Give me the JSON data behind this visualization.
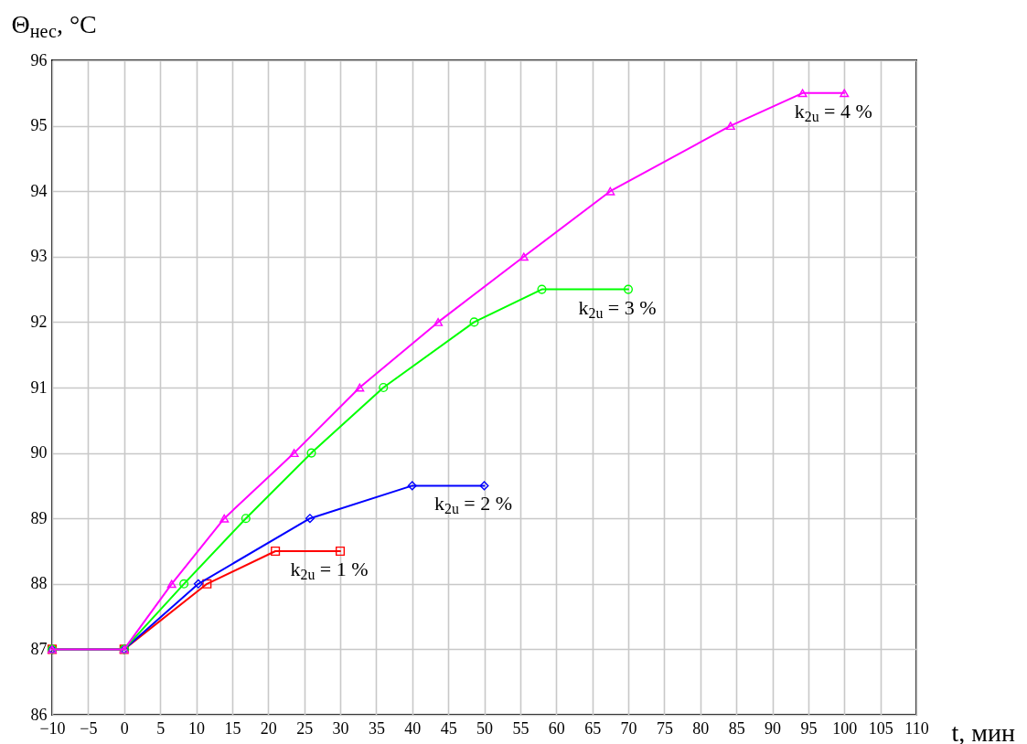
{
  "chart_data": {
    "type": "line",
    "xlabel": "t, мин",
    "ylabel": "Θ$_{нес}$, °C",
    "xlim": [
      -10,
      110
    ],
    "xticks": [
      -10,
      -5,
      0,
      5,
      10,
      15,
      20,
      25,
      30,
      35,
      40,
      45,
      50,
      55,
      60,
      65,
      70,
      75,
      80,
      85,
      90,
      95,
      100,
      105,
      110
    ],
    "ylim": [
      86,
      96
    ],
    "yticks": [
      86,
      87,
      88,
      89,
      90,
      91,
      92,
      93,
      94,
      95,
      96
    ],
    "grid": true,
    "series": [
      {
        "name": "k$_{2u}$ = 1 %",
        "color": "#ff0000",
        "marker": "square",
        "x": [
          -10,
          0,
          11.5,
          21,
          30
        ],
        "values": [
          87,
          87,
          88,
          88.5,
          88.5
        ]
      },
      {
        "name": "k$_{2u}$ = 2 %",
        "color": "#0000ff",
        "marker": "diamond",
        "x": [
          -10,
          0,
          10.3,
          25.8,
          40,
          50
        ],
        "values": [
          87,
          87,
          88,
          89,
          89.5,
          89.5
        ]
      },
      {
        "name": "k$_{2u}$ = 3 %",
        "color": "#00ff00",
        "marker": "circle",
        "x": [
          -10,
          0,
          8.3,
          16.9,
          26,
          36,
          48.6,
          58,
          70
        ],
        "values": [
          87,
          87,
          88,
          89,
          90,
          91,
          92,
          92.5,
          92.5
        ]
      },
      {
        "name": "k$_{2u}$ = 4 %",
        "color": "#ff00ff",
        "marker": "triangle",
        "x": [
          -10,
          0,
          6.6,
          13.9,
          23.6,
          32.7,
          43.6,
          55.5,
          67.5,
          84.2,
          94.2,
          100
        ],
        "values": [
          87,
          87,
          88,
          89,
          90,
          91,
          92,
          93,
          94,
          95,
          95.5,
          95.5
        ]
      }
    ]
  }
}
